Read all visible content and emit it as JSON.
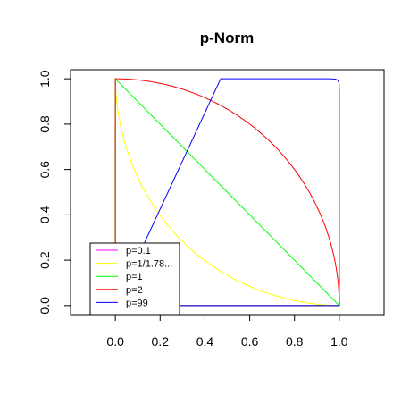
{
  "chart_data": {
    "type": "line",
    "title": "p-Norm",
    "xlabel": "",
    "ylabel": "",
    "xlim": [
      -0.2,
      1.2
    ],
    "ylim": [
      -0.04,
      1.04
    ],
    "x_ticks": [
      "0.0",
      "0.2",
      "0.4",
      "0.6",
      "0.8",
      "1.0"
    ],
    "y_ticks": [
      "0.0",
      "0.2",
      "0.4",
      "0.6",
      "0.8",
      "1.0"
    ],
    "grid": false,
    "legend_position": "bottom-left",
    "series": [
      {
        "name": "p=0.1",
        "p": 0.1,
        "color": "#ff00ff"
      },
      {
        "name": "p=1/1.78...",
        "p": 0.5618,
        "color": "#ffff00"
      },
      {
        "name": "p=1",
        "p": 1,
        "color": "#00ff00"
      },
      {
        "name": "p=2",
        "p": 2,
        "color": "#ff0000"
      },
      {
        "name": "p=99",
        "p": 99,
        "color": "#0000ff"
      }
    ]
  }
}
